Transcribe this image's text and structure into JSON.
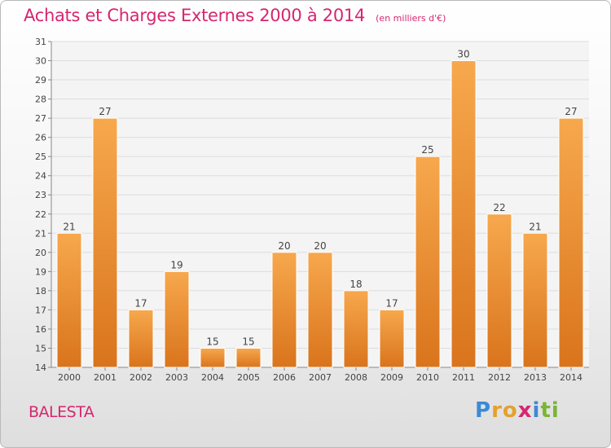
{
  "title": "Achats et Charges Externes 2000 à 2014",
  "subtitle": "(en milliers d'€)",
  "commune": "BALESTA",
  "logo": {
    "letters": [
      "P",
      "r",
      "o",
      "x",
      "i",
      "t",
      "i"
    ],
    "colors": [
      "#3a8ad6",
      "#e3a22c",
      "#e3a22c",
      "#d6266f",
      "#3a8ad6",
      "#7ab534",
      "#7ab534"
    ]
  },
  "colors": {
    "bar_top": "#f7a84d",
    "bar_bottom": "#d9741c",
    "accent": "#d6266f"
  },
  "chart_data": {
    "type": "bar",
    "categories": [
      "2000",
      "2001",
      "2002",
      "2003",
      "2004",
      "2005",
      "2006",
      "2007",
      "2008",
      "2009",
      "2010",
      "2011",
      "2012",
      "2013",
      "2014"
    ],
    "values": [
      21,
      27,
      17,
      19,
      15,
      15,
      20,
      20,
      18,
      17,
      25,
      30,
      22,
      21,
      27
    ],
    "ylim": [
      14,
      31
    ],
    "yticks": [
      14,
      15,
      16,
      17,
      18,
      19,
      20,
      21,
      22,
      23,
      24,
      25,
      26,
      27,
      28,
      29,
      30,
      31
    ],
    "grid": true,
    "data_labels": true
  }
}
